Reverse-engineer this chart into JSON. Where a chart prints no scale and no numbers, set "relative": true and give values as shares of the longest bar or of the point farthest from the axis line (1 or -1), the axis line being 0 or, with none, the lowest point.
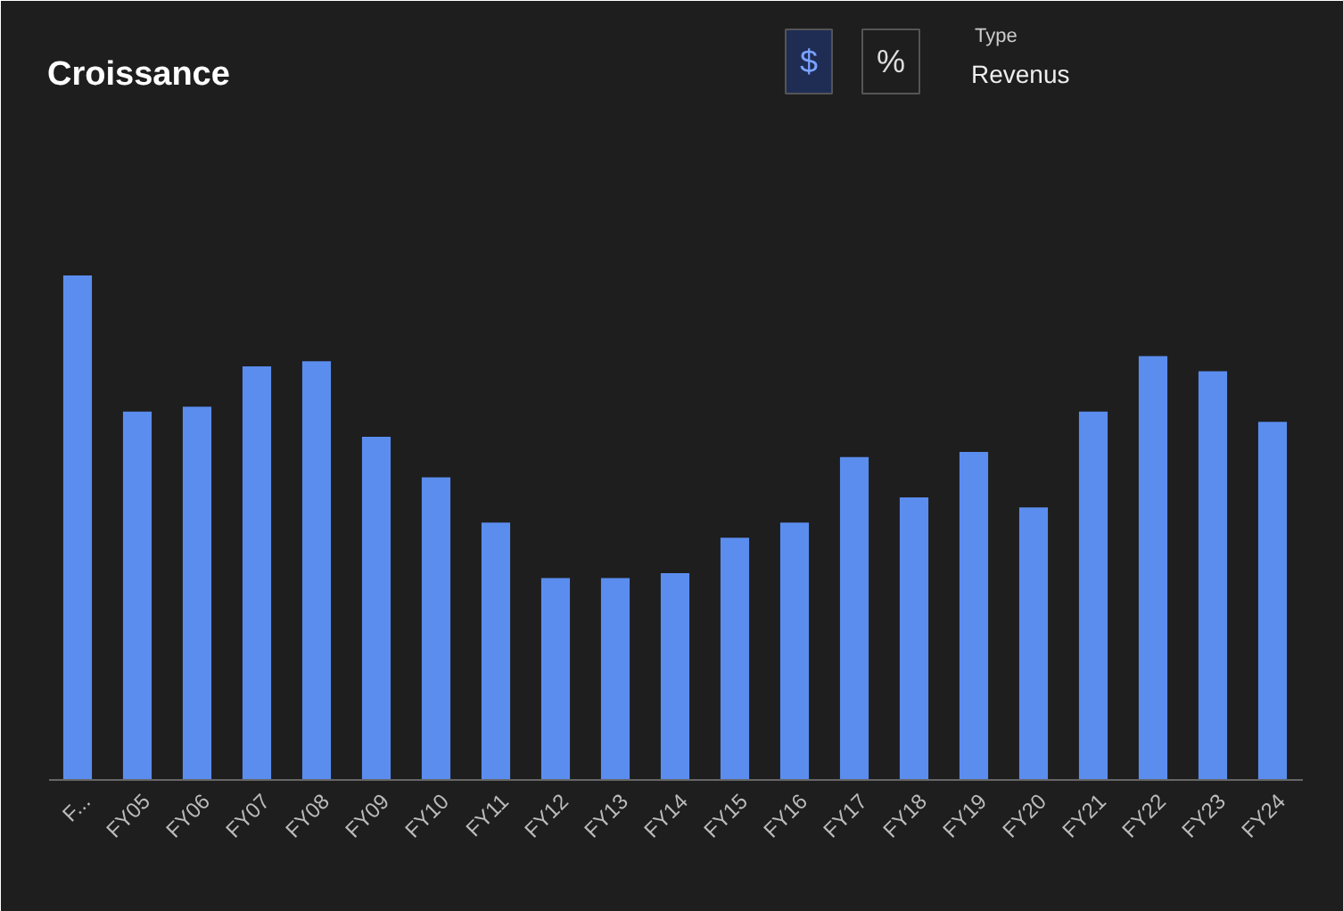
{
  "chart_data": {
    "type": "bar",
    "title": "Croissance",
    "relative": true,
    "color": "#5b8dee",
    "categories": [
      "F...",
      "FY05",
      "FY06",
      "FY07",
      "FY08",
      "FY09",
      "FY10",
      "FY11",
      "FY12",
      "FY13",
      "FY14",
      "FY15",
      "FY16",
      "FY17",
      "FY18",
      "FY19",
      "FY20",
      "FY21",
      "FY22",
      "FY23",
      "FY24"
    ],
    "values": [
      1,
      0.73,
      0.74,
      0.82,
      0.83,
      0.68,
      0.6,
      0.51,
      0.4,
      0.4,
      0.41,
      0.48,
      0.51,
      0.64,
      0.56,
      0.65,
      0.54,
      0.73,
      0.84,
      0.81,
      0.71
    ],
    "annotations": [
      "$",
      "%",
      "Type",
      "Revenus"
    ]
  }
}
